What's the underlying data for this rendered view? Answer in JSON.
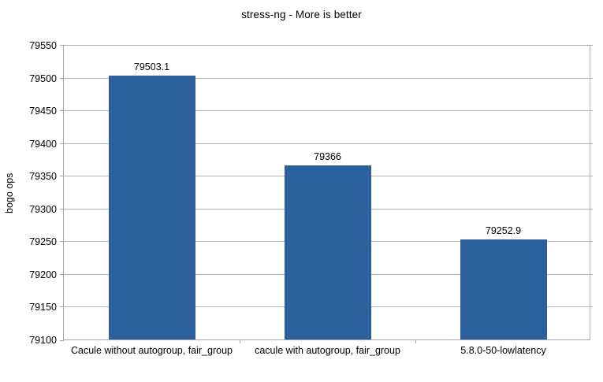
{
  "chart_data": {
    "type": "bar",
    "title": "stress-ng - More is better",
    "xlabel": "",
    "ylabel": "bogo ops",
    "categories": [
      "Cacule without autogroup, fair_group",
      "cacule with autogroup, fair_group",
      "5.8.0-50-lowlatency"
    ],
    "values": [
      79503.1,
      79366,
      79252.9
    ],
    "value_labels": [
      "79503.1",
      "79366",
      "79252.9"
    ],
    "ylim": [
      79100,
      79550
    ],
    "yticks": [
      79100,
      79150,
      79200,
      79250,
      79300,
      79350,
      79400,
      79450,
      79500,
      79550
    ],
    "grid": true,
    "legend": "none",
    "colors": {
      "bar": "#2b609e",
      "gridline": "#b3b3b3",
      "axis": "#a6a6a6",
      "text": "#000000",
      "background": "#ffffff"
    }
  }
}
